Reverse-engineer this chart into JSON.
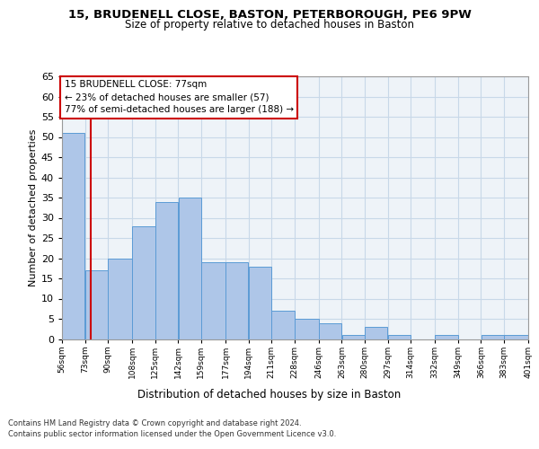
{
  "title_line1": "15, BRUDENELL CLOSE, BASTON, PETERBOROUGH, PE6 9PW",
  "title_line2": "Size of property relative to detached houses in Baston",
  "xlabel": "Distribution of detached houses by size in Baston",
  "ylabel": "Number of detached properties",
  "footer_line1": "Contains HM Land Registry data © Crown copyright and database right 2024.",
  "footer_line2": "Contains public sector information licensed under the Open Government Licence v3.0.",
  "annotation_title": "15 BRUDENELL CLOSE: 77sqm",
  "annotation_line1": "← 23% of detached houses are smaller (57)",
  "annotation_line2": "77% of semi-detached houses are larger (188) →",
  "property_size_sqm": 77,
  "bar_left_edges": [
    56,
    73,
    90,
    108,
    125,
    142,
    159,
    177,
    194,
    211,
    228,
    246,
    263,
    280,
    297,
    314,
    332,
    349,
    366,
    383
  ],
  "bar_widths": [
    17,
    17,
    18,
    17,
    17,
    17,
    18,
    17,
    17,
    17,
    18,
    17,
    17,
    17,
    17,
    18,
    17,
    17,
    17,
    18
  ],
  "bar_heights": [
    51,
    17,
    20,
    28,
    34,
    35,
    19,
    19,
    18,
    7,
    5,
    4,
    1,
    3,
    1,
    0,
    1,
    0,
    1,
    1
  ],
  "tick_labels": [
    "56sqm",
    "73sqm",
    "90sqm",
    "108sqm",
    "125sqm",
    "142sqm",
    "159sqm",
    "177sqm",
    "194sqm",
    "211sqm",
    "228sqm",
    "246sqm",
    "263sqm",
    "280sqm",
    "297sqm",
    "314sqm",
    "332sqm",
    "349sqm",
    "366sqm",
    "383sqm",
    "401sqm"
  ],
  "bar_color": "#aec6e8",
  "bar_edge_color": "#5b9bd5",
  "highlight_line_color": "#cc0000",
  "annotation_box_color": "#cc0000",
  "grid_color": "#c8d8e8",
  "background_color": "#eef3f8",
  "ylim": [
    0,
    65
  ],
  "yticks": [
    0,
    5,
    10,
    15,
    20,
    25,
    30,
    35,
    40,
    45,
    50,
    55,
    60,
    65
  ],
  "title1_fontsize": 9.5,
  "title2_fontsize": 8.5,
  "ylabel_fontsize": 8,
  "xlabel_fontsize": 8.5,
  "tick_fontsize": 6.5,
  "footer_fontsize": 6,
  "ann_fontsize": 7.5
}
